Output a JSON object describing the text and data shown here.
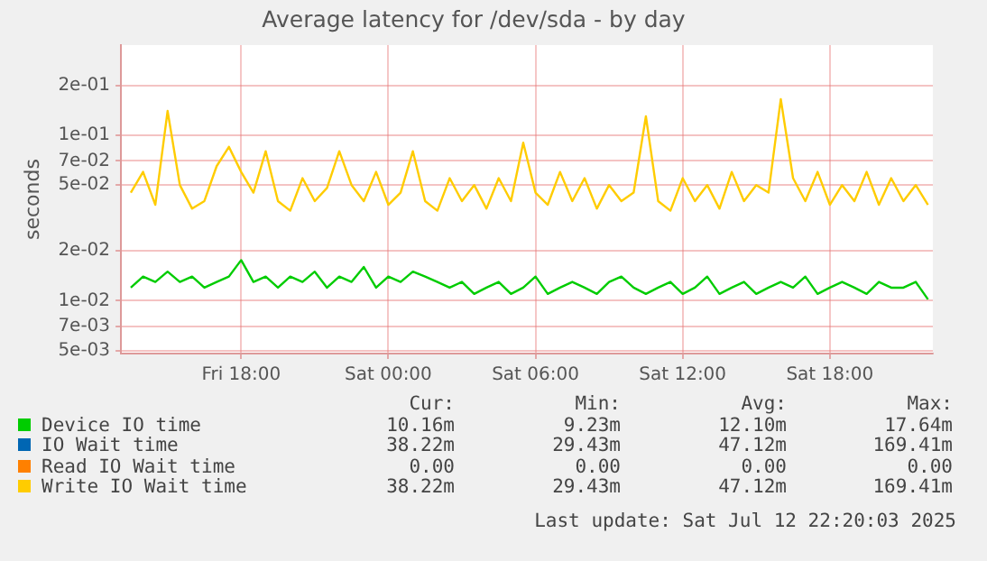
{
  "chart_data": {
    "type": "line",
    "title": "Average latency for /dev/sda - by day",
    "ylabel": "seconds",
    "log": "y",
    "grid": true,
    "legend": "bottom",
    "x": [
      "2025-07-11T13:30",
      "2025-07-11T14:00",
      "2025-07-11T14:30",
      "2025-07-11T15:00",
      "2025-07-11T15:30",
      "2025-07-11T16:00",
      "2025-07-11T16:30",
      "2025-07-11T17:00",
      "2025-07-11T17:30",
      "2025-07-11T18:00",
      "2025-07-11T18:30",
      "2025-07-11T19:00",
      "2025-07-11T19:30",
      "2025-07-11T20:00",
      "2025-07-11T20:30",
      "2025-07-11T21:00",
      "2025-07-11T21:30",
      "2025-07-11T22:00",
      "2025-07-11T22:30",
      "2025-07-11T23:00",
      "2025-07-11T23:30",
      "2025-07-12T00:00",
      "2025-07-12T00:30",
      "2025-07-12T01:00",
      "2025-07-12T01:30",
      "2025-07-12T02:00",
      "2025-07-12T02:30",
      "2025-07-12T03:00",
      "2025-07-12T03:30",
      "2025-07-12T04:00",
      "2025-07-12T04:30",
      "2025-07-12T05:00",
      "2025-07-12T05:30",
      "2025-07-12T06:00",
      "2025-07-12T06:30",
      "2025-07-12T07:00",
      "2025-07-12T07:30",
      "2025-07-12T08:00",
      "2025-07-12T08:30",
      "2025-07-12T09:00",
      "2025-07-12T09:30",
      "2025-07-12T10:00",
      "2025-07-12T10:30",
      "2025-07-12T11:00",
      "2025-07-12T11:30",
      "2025-07-12T12:00",
      "2025-07-12T12:30",
      "2025-07-12T13:00",
      "2025-07-12T13:30",
      "2025-07-12T14:00",
      "2025-07-12T14:30",
      "2025-07-12T15:00",
      "2025-07-12T15:30",
      "2025-07-12T16:00",
      "2025-07-12T16:30",
      "2025-07-12T17:00",
      "2025-07-12T17:30",
      "2025-07-12T18:00",
      "2025-07-12T18:30",
      "2025-07-12T19:00",
      "2025-07-12T19:30",
      "2025-07-12T20:00",
      "2025-07-12T20:30",
      "2025-07-12T21:00",
      "2025-07-12T21:30",
      "2025-07-12T22:00"
    ],
    "xlim": [
      "2025-07-11T13:06",
      "2025-07-12T22:12"
    ],
    "xticks": [
      {
        "value": "2025-07-11T18:00",
        "label": "Fri 18:00"
      },
      {
        "value": "2025-07-12T00:00",
        "label": "Sat 00:00"
      },
      {
        "value": "2025-07-12T06:00",
        "label": "Sat 06:00"
      },
      {
        "value": "2025-07-12T12:00",
        "label": "Sat 12:00"
      },
      {
        "value": "2025-07-12T18:00",
        "label": "Sat 18:00"
      }
    ],
    "ylim": [
      0.0048,
      0.35
    ],
    "yticks": [
      {
        "value": 0.005,
        "label": "5e-03"
      },
      {
        "value": 0.007,
        "label": "7e-03"
      },
      {
        "value": 0.01,
        "label": "1e-02"
      },
      {
        "value": 0.02,
        "label": "2e-02"
      },
      {
        "value": 0.05,
        "label": "5e-02"
      },
      {
        "value": 0.07,
        "label": "7e-02"
      },
      {
        "value": 0.1,
        "label": "1e-01"
      },
      {
        "value": 0.2,
        "label": "2e-01"
      }
    ],
    "series": [
      {
        "name": "Device IO time",
        "color": "#00cc00",
        "values": [
          0.012,
          0.014,
          0.013,
          0.015,
          0.013,
          0.014,
          0.012,
          0.013,
          0.014,
          0.0176,
          0.013,
          0.014,
          0.012,
          0.014,
          0.013,
          0.015,
          0.012,
          0.014,
          0.013,
          0.016,
          0.012,
          0.014,
          0.013,
          0.015,
          0.014,
          0.013,
          0.012,
          0.013,
          0.011,
          0.012,
          0.013,
          0.011,
          0.012,
          0.014,
          0.011,
          0.012,
          0.013,
          0.012,
          0.011,
          0.013,
          0.014,
          0.012,
          0.011,
          0.012,
          0.013,
          0.011,
          0.012,
          0.014,
          0.011,
          0.012,
          0.013,
          0.011,
          0.012,
          0.013,
          0.012,
          0.014,
          0.011,
          0.012,
          0.013,
          0.012,
          0.011,
          0.013,
          0.012,
          0.012,
          0.013,
          0.0102
        ]
      },
      {
        "name": "IO Wait time",
        "color": "#0066b3",
        "values": [
          null,
          null,
          null,
          null,
          null,
          null,
          null,
          null,
          null,
          null,
          null,
          null,
          null,
          null,
          null,
          null,
          null,
          null,
          null,
          null,
          null,
          null,
          null,
          null,
          null,
          null,
          null,
          null,
          null,
          null,
          null,
          null,
          null,
          null,
          null,
          null,
          null,
          null,
          null,
          null,
          null,
          null,
          null,
          null,
          null,
          null,
          null,
          null,
          null,
          null,
          null,
          null,
          null,
          null,
          null,
          null,
          null,
          null,
          null,
          null,
          null,
          null,
          null,
          null,
          null,
          null
        ]
      },
      {
        "name": "Read IO Wait time",
        "color": "#ff8000",
        "values": [
          null,
          null,
          null,
          null,
          null,
          null,
          null,
          null,
          null,
          null,
          null,
          null,
          null,
          null,
          null,
          null,
          null,
          null,
          null,
          null,
          null,
          null,
          null,
          null,
          null,
          null,
          null,
          null,
          null,
          null,
          null,
          null,
          null,
          null,
          null,
          null,
          null,
          null,
          null,
          null,
          null,
          null,
          null,
          null,
          null,
          null,
          null,
          null,
          null,
          null,
          null,
          null,
          null,
          null,
          null,
          null,
          null,
          null,
          null,
          null,
          null,
          null,
          null,
          null,
          null,
          null
        ]
      },
      {
        "name": "Write IO Wait time",
        "color": "#ffcc00",
        "values": [
          0.045,
          0.06,
          0.038,
          0.14,
          0.05,
          0.036,
          0.04,
          0.065,
          0.085,
          0.06,
          0.045,
          0.08,
          0.04,
          0.035,
          0.055,
          0.04,
          0.048,
          0.08,
          0.05,
          0.04,
          0.06,
          0.038,
          0.045,
          0.08,
          0.04,
          0.035,
          0.055,
          0.04,
          0.05,
          0.036,
          0.055,
          0.04,
          0.09,
          0.045,
          0.038,
          0.06,
          0.04,
          0.055,
          0.036,
          0.05,
          0.04,
          0.045,
          0.13,
          0.04,
          0.035,
          0.055,
          0.04,
          0.05,
          0.036,
          0.06,
          0.04,
          0.05,
          0.045,
          0.165,
          0.055,
          0.04,
          0.06,
          0.038,
          0.05,
          0.04,
          0.06,
          0.038,
          0.055,
          0.04,
          0.05,
          0.038
        ]
      }
    ],
    "annotations": [
      "Cur:",
      "Min:",
      "Avg:",
      "Max:",
      "10.16m",
      "9.23m",
      "12.10m",
      "17.64m",
      "38.22m",
      "29.43m",
      "47.12m",
      "169.41m",
      "0.00",
      "0.00",
      "0.00",
      "0.00",
      "38.22m",
      "29.43m",
      "47.12m",
      "169.41m",
      "Last update: Sat Jul 12 22:20:03 2025"
    ]
  }
}
